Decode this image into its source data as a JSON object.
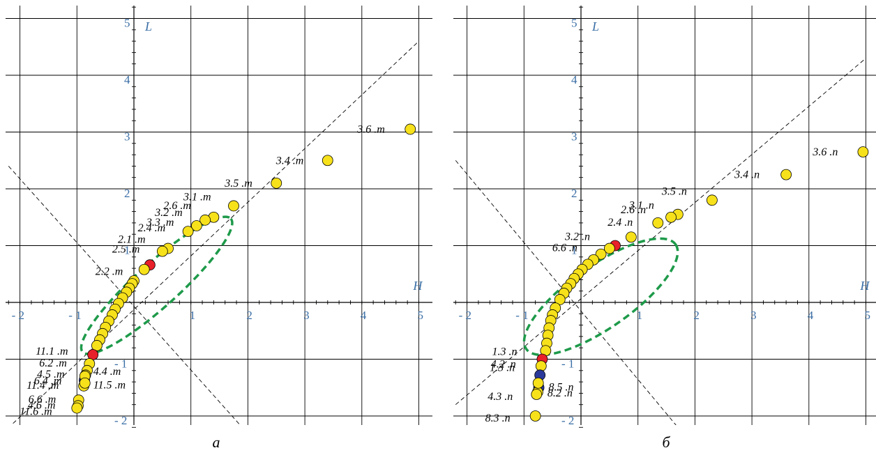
{
  "panels": [
    {
      "caption": "а",
      "x_axis_label": "H",
      "y_axis_label": "L",
      "x_ticks": [
        "- 2",
        "- 1",
        "1",
        "2",
        "3",
        "4",
        "5"
      ],
      "y_ticks": [
        "5",
        "4",
        "3",
        "2",
        "1",
        "- 1",
        "- 2"
      ]
    },
    {
      "caption": "б",
      "x_axis_label": "H",
      "y_axis_label": "L",
      "x_ticks": [
        "- 2",
        "- 1",
        "1",
        "2",
        "3",
        "4",
        "5"
      ],
      "y_ticks": [
        "5",
        "4",
        "3",
        "2",
        "1",
        "- 1",
        "- 2"
      ]
    }
  ],
  "colors": {
    "yellow": "#f7e11b",
    "red": "#e8202a",
    "blue": "#2b3a9a",
    "ellipse": "#1e9a4a",
    "tick_text": "#3a6ea5"
  },
  "chart_data": [
    {
      "type": "scatter",
      "xlim": [
        -2.2,
        5
      ],
      "ylim": [
        -2.2,
        5.2
      ],
      "xlabel": "H",
      "ylabel": "L",
      "grid": true,
      "reference_lines": [
        {
          "style": "dashed",
          "points": [
            [
              -2.3,
              -2.3
            ],
            [
              5,
              4.6
            ]
          ]
        },
        {
          "style": "dashed",
          "points": [
            [
              -2.2,
              2.4
            ],
            [
              1.9,
              -2.2
            ]
          ]
        }
      ],
      "ellipse": {
        "center": [
          0.4,
          0.3
        ],
        "rx": 1.75,
        "ry": 0.38,
        "angle_deg": 42,
        "style": "dashed"
      },
      "points": [
        {
          "x": 4.85,
          "y": 3.05,
          "color": "yellow",
          "label": "3.6 .m"
        },
        {
          "x": 3.4,
          "y": 2.5,
          "color": "yellow",
          "label": "3.4 .m"
        },
        {
          "x": 2.5,
          "y": 2.1,
          "color": "yellow",
          "label": "3.5 .m"
        },
        {
          "x": 1.75,
          "y": 1.7,
          "color": "yellow",
          "label": "3.1 .m"
        },
        {
          "x": 1.4,
          "y": 1.5,
          "color": "yellow",
          "label": "2.6 .m"
        },
        {
          "x": 1.25,
          "y": 1.45,
          "color": "yellow",
          "label": "3.2 .m"
        },
        {
          "x": 1.1,
          "y": 1.35,
          "color": "yellow",
          "label": "3.3 .m"
        },
        {
          "x": 0.95,
          "y": 1.25,
          "color": "yellow",
          "label": "2.4 .m"
        },
        {
          "x": 0.6,
          "y": 0.95,
          "color": "yellow",
          "label": "2.1 .m"
        },
        {
          "x": 0.5,
          "y": 0.9,
          "color": "yellow",
          "label": "2.5 .m"
        },
        {
          "x": 0.28,
          "y": 0.66,
          "color": "red",
          "label": ""
        },
        {
          "x": 0.18,
          "y": 0.58,
          "color": "yellow",
          "label": "2.2 .m"
        },
        {
          "x": 0.0,
          "y": 0.38,
          "color": "yellow",
          "label": ""
        },
        {
          "x": -0.03,
          "y": 0.33,
          "color": "yellow",
          "label": ""
        },
        {
          "x": -0.08,
          "y": 0.25,
          "color": "yellow",
          "label": ""
        },
        {
          "x": -0.13,
          "y": 0.18,
          "color": "yellow",
          "label": ""
        },
        {
          "x": -0.2,
          "y": 0.08,
          "color": "yellow",
          "label": ""
        },
        {
          "x": -0.27,
          "y": -0.02,
          "color": "yellow",
          "label": ""
        },
        {
          "x": -0.33,
          "y": -0.12,
          "color": "yellow",
          "label": ""
        },
        {
          "x": -0.38,
          "y": -0.22,
          "color": "yellow",
          "label": ""
        },
        {
          "x": -0.44,
          "y": -0.33,
          "color": "yellow",
          "label": ""
        },
        {
          "x": -0.5,
          "y": -0.44,
          "color": "yellow",
          "label": ""
        },
        {
          "x": -0.55,
          "y": -0.55,
          "color": "yellow",
          "label": ""
        },
        {
          "x": -0.6,
          "y": -0.66,
          "color": "yellow",
          "label": ""
        },
        {
          "x": -0.65,
          "y": -0.76,
          "color": "yellow",
          "label": ""
        },
        {
          "x": -0.72,
          "y": -0.92,
          "color": "red",
          "label": "11.1 .m"
        },
        {
          "x": -0.78,
          "y": -1.08,
          "color": "yellow",
          "label": "6.2 .m"
        },
        {
          "x": -0.82,
          "y": -1.2,
          "color": "yellow",
          "label": "4.5 .m"
        },
        {
          "x": -0.85,
          "y": -1.28,
          "color": "yellow",
          "label": ""
        },
        {
          "x": -0.87,
          "y": -1.37,
          "color": "blue",
          "label": "6.4 .m"
        },
        {
          "x": -0.86,
          "y": -1.3,
          "color": "yellow",
          "label": "4.4 .m"
        },
        {
          "x": -0.88,
          "y": -1.47,
          "color": "yellow",
          "label": "11.4 .m"
        },
        {
          "x": -0.86,
          "y": -1.42,
          "color": "yellow",
          "label": "11.5 .m"
        },
        {
          "x": -0.97,
          "y": -1.72,
          "color": "yellow",
          "label": "6.6 .m"
        },
        {
          "x": -0.98,
          "y": -1.82,
          "color": "yellow",
          "label": "4.6 .m"
        },
        {
          "x": -1.0,
          "y": -1.86,
          "color": "yellow",
          "label": "11.6 .m"
        }
      ]
    },
    {
      "type": "scatter",
      "xlim": [
        -2.2,
        5
      ],
      "ylim": [
        -2.2,
        5.2
      ],
      "xlabel": "H",
      "ylabel": "L",
      "grid": true,
      "reference_lines": [
        {
          "style": "dashed",
          "points": [
            [
              -2.2,
              -1.8
            ],
            [
              5,
              4.3
            ]
          ]
        },
        {
          "style": "dashed",
          "points": [
            [
              -2.2,
              2.5
            ],
            [
              1.7,
              -2.2
            ]
          ]
        }
      ],
      "ellipse": {
        "center": [
          0.35,
          0.1
        ],
        "rx": 1.6,
        "ry": 0.55,
        "angle_deg": 35,
        "style": "dashed"
      },
      "points": [
        {
          "x": 4.95,
          "y": 2.65,
          "color": "yellow",
          "label": "3.6 .n"
        },
        {
          "x": 3.6,
          "y": 2.25,
          "color": "yellow",
          "label": "3.4 .n"
        },
        {
          "x": 2.3,
          "y": 1.8,
          "color": "yellow",
          "label": "3.5 .n"
        },
        {
          "x": 1.7,
          "y": 1.55,
          "color": "yellow",
          "label": "3.1 .n"
        },
        {
          "x": 1.58,
          "y": 1.5,
          "color": "yellow",
          "label": "2.6 .n"
        },
        {
          "x": 1.35,
          "y": 1.4,
          "color": "yellow",
          "label": "2.4 .n"
        },
        {
          "x": 0.88,
          "y": 1.15,
          "color": "yellow",
          "label": ""
        },
        {
          "x": 0.6,
          "y": 1.0,
          "color": "red",
          "label": "3.2 .n"
        },
        {
          "x": 0.5,
          "y": 0.95,
          "color": "yellow",
          "label": "6.6 .n"
        },
        {
          "x": 0.35,
          "y": 0.85,
          "color": "yellow",
          "label": ""
        },
        {
          "x": 0.22,
          "y": 0.75,
          "color": "yellow",
          "label": ""
        },
        {
          "x": 0.12,
          "y": 0.67,
          "color": "yellow",
          "label": ""
        },
        {
          "x": 0.02,
          "y": 0.58,
          "color": "yellow",
          "label": ""
        },
        {
          "x": -0.05,
          "y": 0.5,
          "color": "yellow",
          "label": ""
        },
        {
          "x": -0.12,
          "y": 0.42,
          "color": "yellow",
          "label": ""
        },
        {
          "x": -0.18,
          "y": 0.33,
          "color": "yellow",
          "label": ""
        },
        {
          "x": -0.25,
          "y": 0.25,
          "color": "yellow",
          "label": ""
        },
        {
          "x": -0.3,
          "y": 0.16,
          "color": "yellow",
          "label": ""
        },
        {
          "x": -0.37,
          "y": 0.05,
          "color": "yellow",
          "label": ""
        },
        {
          "x": -0.45,
          "y": -0.1,
          "color": "yellow",
          "label": ""
        },
        {
          "x": -0.5,
          "y": -0.22,
          "color": "yellow",
          "label": ""
        },
        {
          "x": -0.53,
          "y": -0.32,
          "color": "yellow",
          "label": ""
        },
        {
          "x": -0.56,
          "y": -0.45,
          "color": "yellow",
          "label": ""
        },
        {
          "x": -0.58,
          "y": -0.58,
          "color": "yellow",
          "label": ""
        },
        {
          "x": -0.6,
          "y": -0.72,
          "color": "yellow",
          "label": ""
        },
        {
          "x": -0.62,
          "y": -0.85,
          "color": "yellow",
          "label": ""
        },
        {
          "x": -0.68,
          "y": -1.0,
          "color": "red",
          "label": "1.3 .n"
        },
        {
          "x": -0.7,
          "y": -1.12,
          "color": "yellow",
          "label": "4.2 .n"
        },
        {
          "x": -0.72,
          "y": -1.28,
          "color": "blue",
          "label": "1.3 .n"
        },
        {
          "x": -0.74,
          "y": -1.5,
          "color": "blue",
          "label": "8.5 .n"
        },
        {
          "x": -0.76,
          "y": -1.58,
          "color": "yellow",
          "label": "8.2 .n"
        },
        {
          "x": -0.75,
          "y": -1.42,
          "color": "yellow",
          "label": ""
        },
        {
          "x": -0.78,
          "y": -1.62,
          "color": "yellow",
          "label": "4.3 .n"
        },
        {
          "x": -0.8,
          "y": -2.0,
          "color": "yellow",
          "label": "8.3 .n"
        }
      ]
    }
  ]
}
